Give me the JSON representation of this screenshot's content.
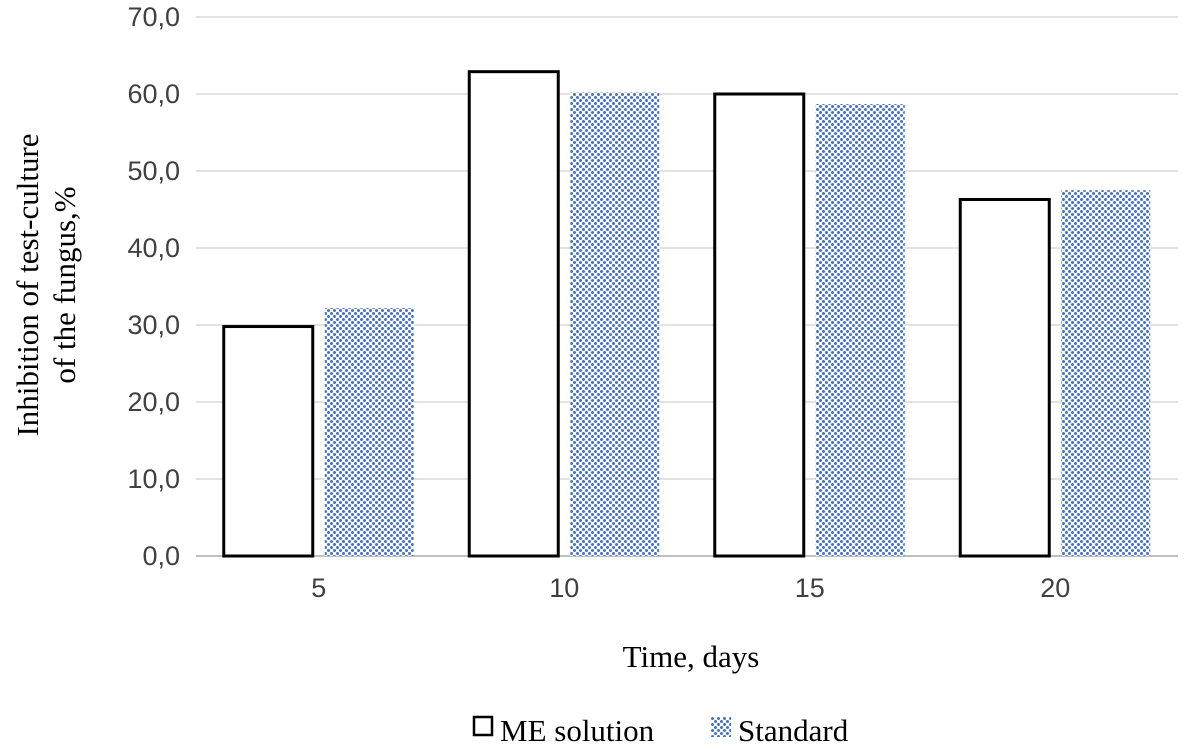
{
  "chart_data": {
    "type": "bar",
    "title": "",
    "xlabel": "Time, days",
    "ylabel_lines": [
      "Inhibition of test-culture",
      "of the fungus,%"
    ],
    "categories": [
      "5",
      "10",
      "15",
      "20"
    ],
    "series": [
      {
        "name": "ME solution",
        "values": [
          29.8,
          62.9,
          60.0,
          46.3
        ]
      },
      {
        "name": "Standard",
        "values": [
          32.2,
          60.2,
          58.7,
          47.5
        ]
      }
    ],
    "ylim": [
      0,
      70
    ],
    "yticks": [
      "0,0",
      "10,0",
      "20,0",
      "30,0",
      "40,0",
      "50,0",
      "60,0",
      "70,0"
    ],
    "grid": true,
    "legend": "bottom",
    "colors": {
      "standard_fill": "#4472c4",
      "me_fill": "#ffffff",
      "me_stroke": "#000000",
      "grid": "#d9d9d9"
    }
  }
}
